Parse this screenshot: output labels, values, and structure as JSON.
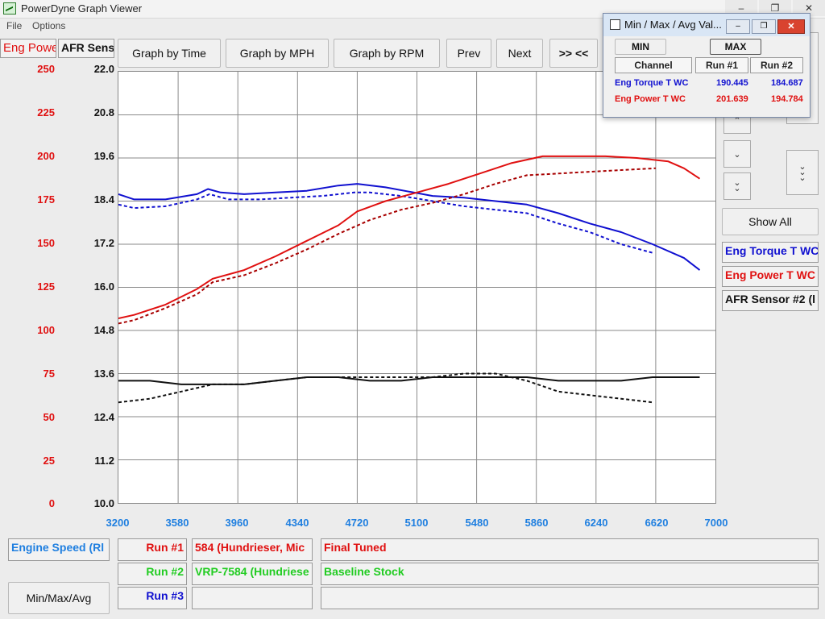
{
  "app": {
    "title": "PowerDyne Graph Viewer",
    "menu": [
      "File",
      "Options"
    ]
  },
  "window_controls": {
    "minimize": "–",
    "maximize": "❐",
    "close": "✕"
  },
  "toolbar": {
    "left_channel": "Eng Powe",
    "right_channel": "AFR Sens",
    "buttons": [
      "Graph by Time",
      "Graph by MPH",
      "Graph by RPM",
      "Prev",
      "Next",
      ">> <<"
    ]
  },
  "popup": {
    "title": "Min / Max / Avg Val...",
    "min_label": "MIN",
    "max_label": "MAX",
    "headers": [
      "Channel",
      "Run #1",
      "Run #2"
    ],
    "rows": [
      {
        "channel": "Eng Torque T WC",
        "run1": "190.445",
        "run2": "184.687",
        "color": "#1010d0"
      },
      {
        "channel": "Eng Power T WC",
        "run1": "201.639",
        "run2": "194.784",
        "color": "#e01010"
      }
    ]
  },
  "side_panel": {
    "icons": [
      "chevron-up-icon",
      "chevron-down-icon",
      "double-chevron-down-icon",
      "triple-chevron-down-icon"
    ],
    "show_all": "Show All",
    "channels": [
      {
        "label": "Eng Torque T WC",
        "color": "#1010d0"
      },
      {
        "label": "Eng Power T WC",
        "color": "#e01010"
      },
      {
        "label": "AFR Sensor #2 (l",
        "color": "#111111"
      }
    ]
  },
  "bottom": {
    "x_channel": "Engine Speed (Rl",
    "runs": [
      {
        "label": "Run #1",
        "name": "584 (Hundrieser, Mic",
        "desc": "Final Tuned",
        "label_color": "#e01010",
        "desc_color": "#e01010"
      },
      {
        "label": "Run #2",
        "name": "VRP-7584 (Hundriese",
        "desc": "Baseline Stock",
        "label_color": "#22cc22",
        "desc_color": "#22cc22"
      },
      {
        "label": "Run #3",
        "name": "",
        "desc": "",
        "label_color": "#1010d0",
        "desc_color": "#1010d0"
      }
    ],
    "minmax_button": "Min/Max/Avg"
  },
  "chart_data": {
    "type": "line",
    "xlabel": "",
    "xlim": [
      3200,
      7000
    ],
    "x_ticks": [
      "3200",
      "3580",
      "3960",
      "4340",
      "4720",
      "5100",
      "5480",
      "5860",
      "6240",
      "6620",
      "7000"
    ],
    "y_left": {
      "ylim": [
        0,
        250
      ],
      "ticks": [
        "250",
        "225",
        "200",
        "175",
        "150",
        "125",
        "100",
        "75",
        "50",
        "25",
        "0"
      ],
      "color": "#e01010"
    },
    "y_right": {
      "ylim": [
        10.0,
        22.0
      ],
      "ticks": [
        "22.0",
        "20.8",
        "19.6",
        "18.4",
        "17.2",
        "16.0",
        "14.8",
        "13.6",
        "12.4",
        "11.2",
        "10.0"
      ],
      "color": "#111111"
    },
    "grid": true,
    "series": [
      {
        "name": "Eng Torque T WC",
        "run": 1,
        "axis": "left",
        "color": "#1010d0",
        "dashed": false,
        "x": [
          3200,
          3300,
          3500,
          3700,
          3770,
          3850,
          4000,
          4200,
          4400,
          4600,
          4720,
          4900,
          5200,
          5400,
          5600,
          5800,
          6000,
          6200,
          6400,
          6600,
          6800,
          6900
        ],
        "y": [
          179,
          176,
          176,
          179,
          182,
          180,
          179,
          180,
          181,
          184,
          185,
          183,
          178,
          177,
          175,
          173,
          168,
          162,
          157,
          150,
          142,
          135
        ]
      },
      {
        "name": "Eng Torque T WC",
        "run": 2,
        "axis": "left",
        "color": "#1010d0",
        "dashed": true,
        "x": [
          3200,
          3300,
          3500,
          3700,
          3780,
          3900,
          4100,
          4300,
          4500,
          4700,
          4800,
          5000,
          5200,
          5400,
          5600,
          5800,
          6000,
          6200,
          6400,
          6600
        ],
        "y": [
          173,
          171,
          172,
          176,
          179,
          176,
          176,
          177,
          178,
          180,
          180,
          178,
          175,
          172,
          170,
          168,
          162,
          157,
          150,
          145
        ]
      },
      {
        "name": "Eng Power T WC",
        "run": 1,
        "axis": "left",
        "color": "#e01010",
        "dashed": false,
        "x": [
          3200,
          3300,
          3500,
          3700,
          3800,
          4000,
          4200,
          4400,
          4600,
          4720,
          4900,
          5100,
          5300,
          5500,
          5700,
          5900,
          6100,
          6300,
          6500,
          6700,
          6800,
          6900
        ],
        "y": [
          107,
          109,
          115,
          124,
          130,
          135,
          143,
          152,
          161,
          169,
          175,
          180,
          185,
          191,
          197,
          201,
          201,
          201,
          200,
          198,
          194,
          188
        ]
      },
      {
        "name": "Eng Power T WC",
        "run": 2,
        "axis": "left",
        "color": "#a80000",
        "dashed": true,
        "x": [
          3200,
          3300,
          3500,
          3700,
          3800,
          4000,
          4200,
          4400,
          4600,
          4800,
          5000,
          5200,
          5400,
          5600,
          5800,
          6000,
          6200,
          6400,
          6620
        ],
        "y": [
          104,
          106,
          113,
          121,
          128,
          132,
          139,
          147,
          156,
          164,
          170,
          174,
          179,
          185,
          190,
          191,
          192,
          193,
          194
        ]
      },
      {
        "name": "AFR Sensor #2",
        "run": 1,
        "axis": "right",
        "color": "#111111",
        "dashed": false,
        "x": [
          3200,
          3400,
          3600,
          3800,
          4000,
          4200,
          4400,
          4600,
          4800,
          5000,
          5200,
          5400,
          5600,
          5800,
          6000,
          6200,
          6400,
          6600,
          6800,
          6900
        ],
        "y": [
          13.4,
          13.4,
          13.3,
          13.3,
          13.3,
          13.4,
          13.5,
          13.5,
          13.4,
          13.4,
          13.5,
          13.5,
          13.5,
          13.5,
          13.4,
          13.4,
          13.4,
          13.5,
          13.5,
          13.5
        ]
      },
      {
        "name": "AFR Sensor #2",
        "run": 2,
        "axis": "right",
        "color": "#111111",
        "dashed": true,
        "x": [
          3200,
          3400,
          3600,
          3800,
          4000,
          4200,
          4400,
          4600,
          4800,
          5000,
          5200,
          5400,
          5600,
          5800,
          6000,
          6200,
          6400,
          6600
        ],
        "y": [
          12.8,
          12.9,
          13.1,
          13.3,
          13.3,
          13.4,
          13.5,
          13.5,
          13.5,
          13.5,
          13.5,
          13.6,
          13.6,
          13.4,
          13.1,
          13.0,
          12.9,
          12.8
        ]
      }
    ]
  }
}
